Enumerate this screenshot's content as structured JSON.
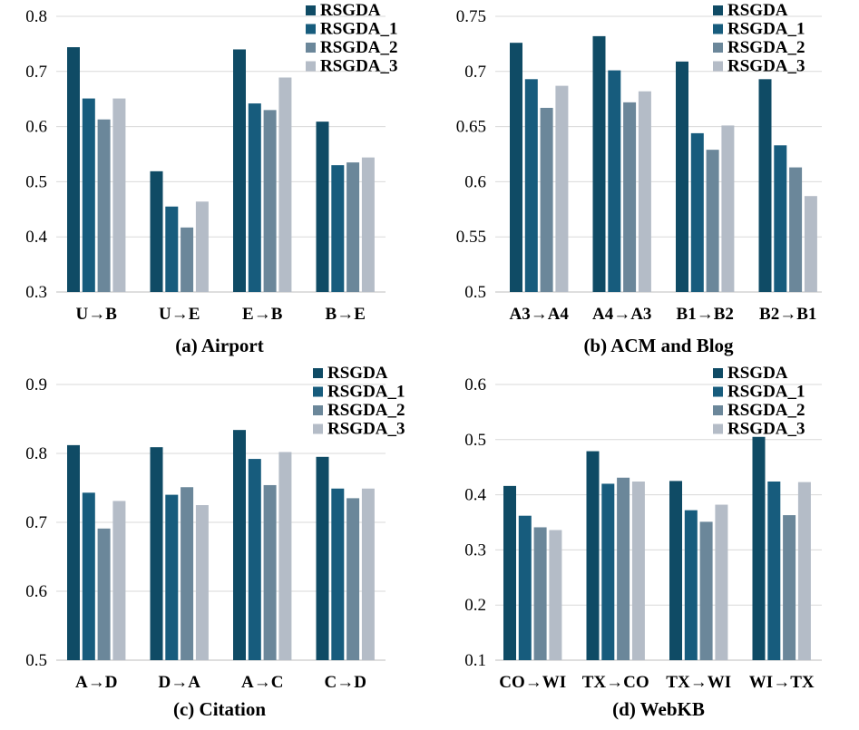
{
  "colors": [
    "#0f4b65",
    "#175c7d",
    "#6b879a",
    "#b4bcc7"
  ],
  "chart_data": [
    {
      "type": "bar",
      "title": "(a) Airport",
      "categories": [
        "U→B",
        "U→E",
        "E→B",
        "B→E"
      ],
      "ylim": [
        0.3,
        0.8
      ],
      "yticks": [
        "0.3",
        "0.4",
        "0.5",
        "0.6",
        "0.7",
        "0.8"
      ],
      "series": [
        {
          "name": "RSGDA",
          "values": [
            0.744,
            0.519,
            0.74,
            0.609
          ]
        },
        {
          "name": "RSGDA_1",
          "values": [
            0.651,
            0.455,
            0.642,
            0.53
          ]
        },
        {
          "name": "RSGDA_2",
          "values": [
            0.613,
            0.417,
            0.63,
            0.535
          ]
        },
        {
          "name": "RSGDA_3",
          "values": [
            0.651,
            0.464,
            0.689,
            0.544
          ]
        }
      ]
    },
    {
      "type": "bar",
      "title": "(b) ACM and Blog",
      "categories": [
        "A3→A4",
        "A4→A3",
        "B1→B2",
        "B2→B1"
      ],
      "ylim": [
        0.5,
        0.75
      ],
      "yticks": [
        "0.5",
        "0.55",
        "0.6",
        "0.65",
        "0.7",
        "0.75"
      ],
      "series": [
        {
          "name": "RSGDA",
          "values": [
            0.726,
            0.732,
            0.709,
            0.693
          ]
        },
        {
          "name": "RSGDA_1",
          "values": [
            0.693,
            0.701,
            0.644,
            0.633
          ]
        },
        {
          "name": "RSGDA_2",
          "values": [
            0.667,
            0.672,
            0.629,
            0.613
          ]
        },
        {
          "name": "RSGDA_3",
          "values": [
            0.687,
            0.682,
            0.651,
            0.587
          ]
        }
      ]
    },
    {
      "type": "bar",
      "title": "(c) Citation",
      "categories": [
        "A→D",
        "D→A",
        "A→C",
        "C→D"
      ],
      "ylim": [
        0.5,
        0.9
      ],
      "yticks": [
        "0.5",
        "0.6",
        "0.7",
        "0.8",
        "0.9"
      ],
      "series": [
        {
          "name": "RSGDA",
          "values": [
            0.812,
            0.809,
            0.834,
            0.795
          ]
        },
        {
          "name": "RSGDA_1",
          "values": [
            0.743,
            0.74,
            0.792,
            0.749
          ]
        },
        {
          "name": "RSGDA_2",
          "values": [
            0.691,
            0.751,
            0.754,
            0.735
          ]
        },
        {
          "name": "RSGDA_3",
          "values": [
            0.731,
            0.725,
            0.802,
            0.749
          ]
        }
      ]
    },
    {
      "type": "bar",
      "title": "(d) WebKB",
      "categories": [
        "CO→WI",
        "TX→CO",
        "TX→WI",
        "WI→TX"
      ],
      "ylim": [
        0.1,
        0.6
      ],
      "yticks": [
        "0.1",
        "0.2",
        "0.3",
        "0.4",
        "0.5",
        "0.6"
      ],
      "series": [
        {
          "name": "RSGDA",
          "values": [
            0.416,
            0.479,
            0.425,
            0.505
          ]
        },
        {
          "name": "RSGDA_1",
          "values": [
            0.362,
            0.42,
            0.372,
            0.424
          ]
        },
        {
          "name": "RSGDA_2",
          "values": [
            0.341,
            0.431,
            0.351,
            0.363
          ]
        },
        {
          "name": "RSGDA_3",
          "values": [
            0.336,
            0.424,
            0.382,
            0.423
          ]
        }
      ]
    }
  ]
}
